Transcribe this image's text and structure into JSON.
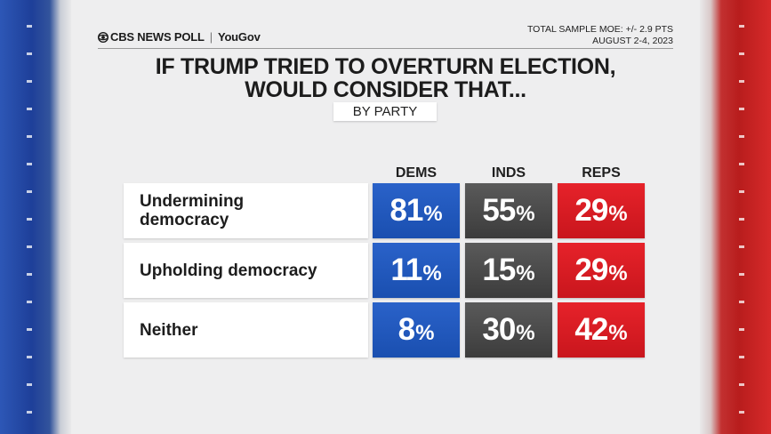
{
  "header": {
    "brand": "CBS NEWS POLL",
    "partner": "YouGov",
    "moe": "TOTAL SAMPLE MOE: +/- 2.9 PTS",
    "dates": "AUGUST 2-4, 2023"
  },
  "colors": {
    "dems": "#1f56bb",
    "inds": "#4a4a4a",
    "reps": "#d91c23"
  },
  "chart_data": {
    "type": "table",
    "title": [
      "IF TRUMP TRIED TO OVERTURN ELECTION,",
      "WOULD CONSIDER THAT..."
    ],
    "subtitle": "BY PARTY",
    "columns": [
      "DEMS",
      "INDS",
      "REPS"
    ],
    "unit": "%",
    "rows": [
      {
        "label": "Undermining democracy",
        "values": [
          81,
          55,
          29
        ]
      },
      {
        "label": "Upholding democracy",
        "values": [
          11,
          15,
          29
        ]
      },
      {
        "label": "Neither",
        "values": [
          8,
          30,
          42
        ]
      }
    ]
  }
}
